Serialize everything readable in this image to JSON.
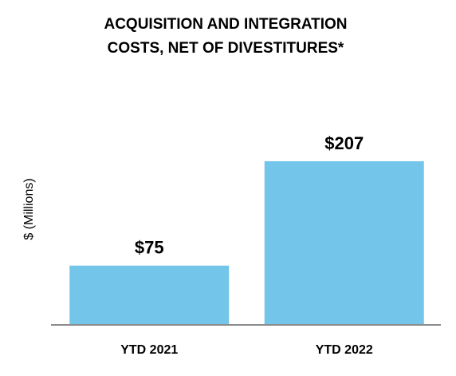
{
  "chart_data": {
    "type": "bar",
    "title_lines": [
      "ACQUISITION AND INTEGRATION",
      "COSTS, NET OF DIVESTITURES*"
    ],
    "ylabel": "$ (Millions)",
    "xlabel": "",
    "categories": [
      "YTD 2021",
      "YTD 2022"
    ],
    "values": [
      75,
      207
    ],
    "data_labels": [
      "$75",
      "$207"
    ],
    "bar_color": "#73c5ea",
    "axis_color": "#8c8c8c",
    "text_color": "#000000",
    "grid": false,
    "legend": "none"
  }
}
